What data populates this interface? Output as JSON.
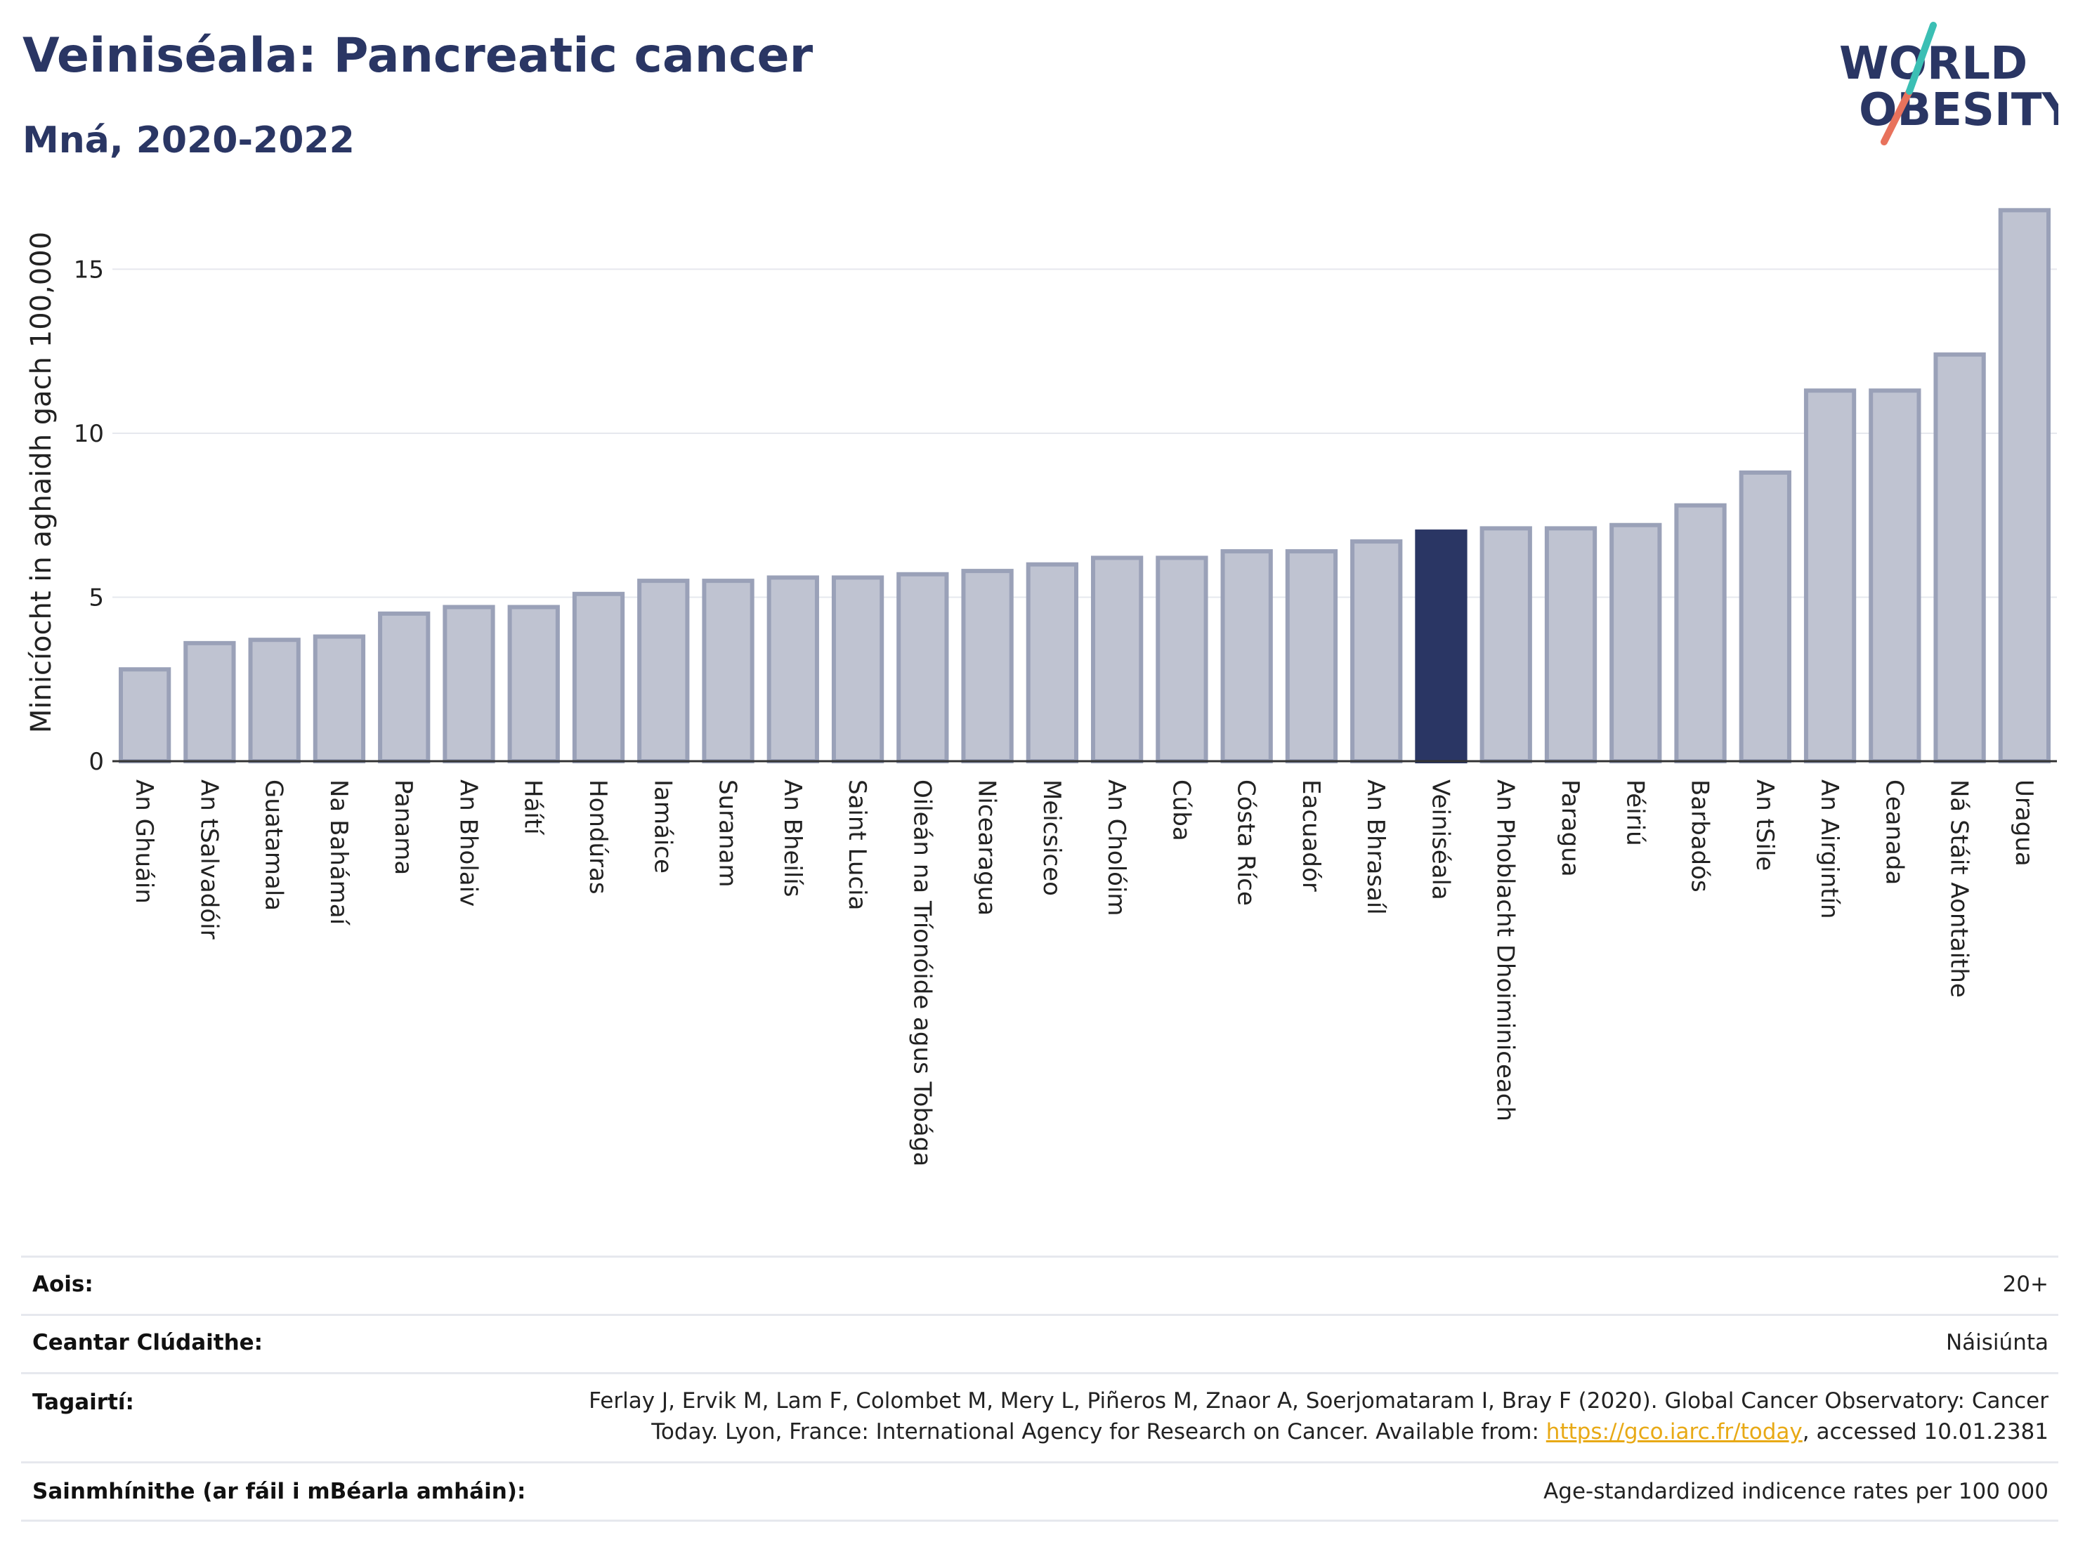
{
  "header": {
    "title": "Veiniséala: Pancreatic cancer",
    "subtitle": "Mná, 2020-2022"
  },
  "logo": {
    "line1": "WORLD",
    "line2": "OBESITY",
    "colors": {
      "text": "#2a3664",
      "slash_teal": "#3bbfb4",
      "slash_red": "#e8725c"
    }
  },
  "chart_data": {
    "type": "bar",
    "title": "Veiniséala: Pancreatic cancer",
    "subtitle": "Mná, 2020-2022",
    "ylabel": "Minicíocht in aghaidh gach 100,000",
    "xlabel": "",
    "ylim": [
      0,
      17
    ],
    "yticks": [
      0,
      5,
      10,
      15
    ],
    "grid": true,
    "legend": "none",
    "highlight": "Veiniséala",
    "colors": {
      "bar": "#bfc3d1",
      "bar_edge": "#9aa1b8",
      "highlight": "#2a3664",
      "grid": "#e6e8ee"
    },
    "categories": [
      "An Ghuáin",
      "An tSalvadóir",
      "Guatamala",
      "Na Bahámaí",
      "Panama",
      "An Bholaiv",
      "Háítí",
      "Hondúras",
      "Iamáice",
      "Suranam",
      "An Bheilís",
      "Saint Lucia",
      "Oileán na Tríonóide agus Tobága",
      "Nicearagua",
      "Meicsiceo",
      "An Cholóim",
      "Cúba",
      "Cósta Ríce",
      "Eacuadór",
      "An Bhrasaíl",
      "Veiniséala",
      "An Phoblacht Dhoiminiceach",
      "Paragua",
      "Péiriú",
      "Barbadós",
      "An tSile",
      "An Airgintín",
      "Ceanada",
      "Ná Stáit Aontaithe",
      "Uragua"
    ],
    "values": [
      2.8,
      3.6,
      3.7,
      3.8,
      4.5,
      4.7,
      4.7,
      5.1,
      5.5,
      5.5,
      5.6,
      5.6,
      5.7,
      5.8,
      6.0,
      6.2,
      6.2,
      6.4,
      6.4,
      6.7,
      7.0,
      7.1,
      7.1,
      7.2,
      7.8,
      8.8,
      11.3,
      11.3,
      12.4,
      16.8
    ]
  },
  "footer": {
    "rows": [
      {
        "label": "Aois:",
        "value": "20+"
      },
      {
        "label": "Ceantar Clúdaithe:",
        "value": "Náisiúnta"
      },
      {
        "label": "Tagairtí:",
        "value_line1": "Ferlay J, Ervik M, Lam F, Colombet M, Mery L, Piñeros M, Znaor A, Soerjomataram I, Bray F (2020). Global Cancer Observatory: Cancer",
        "value_line2_pre": "Today. Lyon, France: International Agency for Research on Cancer. Available from: ",
        "link": "https://gco.iarc.fr/today",
        "value_line2_post": ", accessed 10.01.2381"
      },
      {
        "label": "Sainmhínithe (ar fáil i mBéarla amháin):",
        "value": "Age-standardized indicence rates per 100 000"
      }
    ]
  }
}
